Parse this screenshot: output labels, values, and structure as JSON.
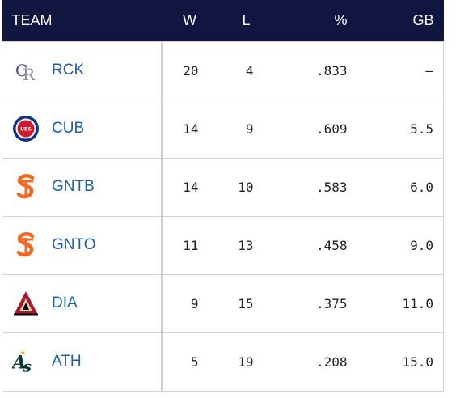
{
  "header": {
    "team": "TEAM",
    "w": "W",
    "l": "L",
    "pct": "%",
    "gb": "GB"
  },
  "rows": [
    {
      "team": "RCK",
      "logo": "rockies-logo-icon",
      "w": "20",
      "l": "4",
      "pct": ".833",
      "gb": "–"
    },
    {
      "team": "CUB",
      "logo": "cubs-logo-icon",
      "w": "14",
      "l": "9",
      "pct": ".609",
      "gb": "5.5"
    },
    {
      "team": "GNTB",
      "logo": "giants-logo-icon",
      "w": "14",
      "l": "10",
      "pct": ".583",
      "gb": "6.0"
    },
    {
      "team": "GNTO",
      "logo": "giants-logo-icon",
      "w": "11",
      "l": "13",
      "pct": ".458",
      "gb": "9.0"
    },
    {
      "team": "DIA",
      "logo": "diamondbacks-logo-icon",
      "w": "9",
      "l": "15",
      "pct": ".375",
      "gb": "11.0"
    },
    {
      "team": "ATH",
      "logo": "athletics-logo-icon",
      "w": "5",
      "l": "19",
      "pct": ".208",
      "gb": "15.0"
    }
  ],
  "colors": {
    "header_bg": "#10163f",
    "link": "#1f5fa6"
  }
}
